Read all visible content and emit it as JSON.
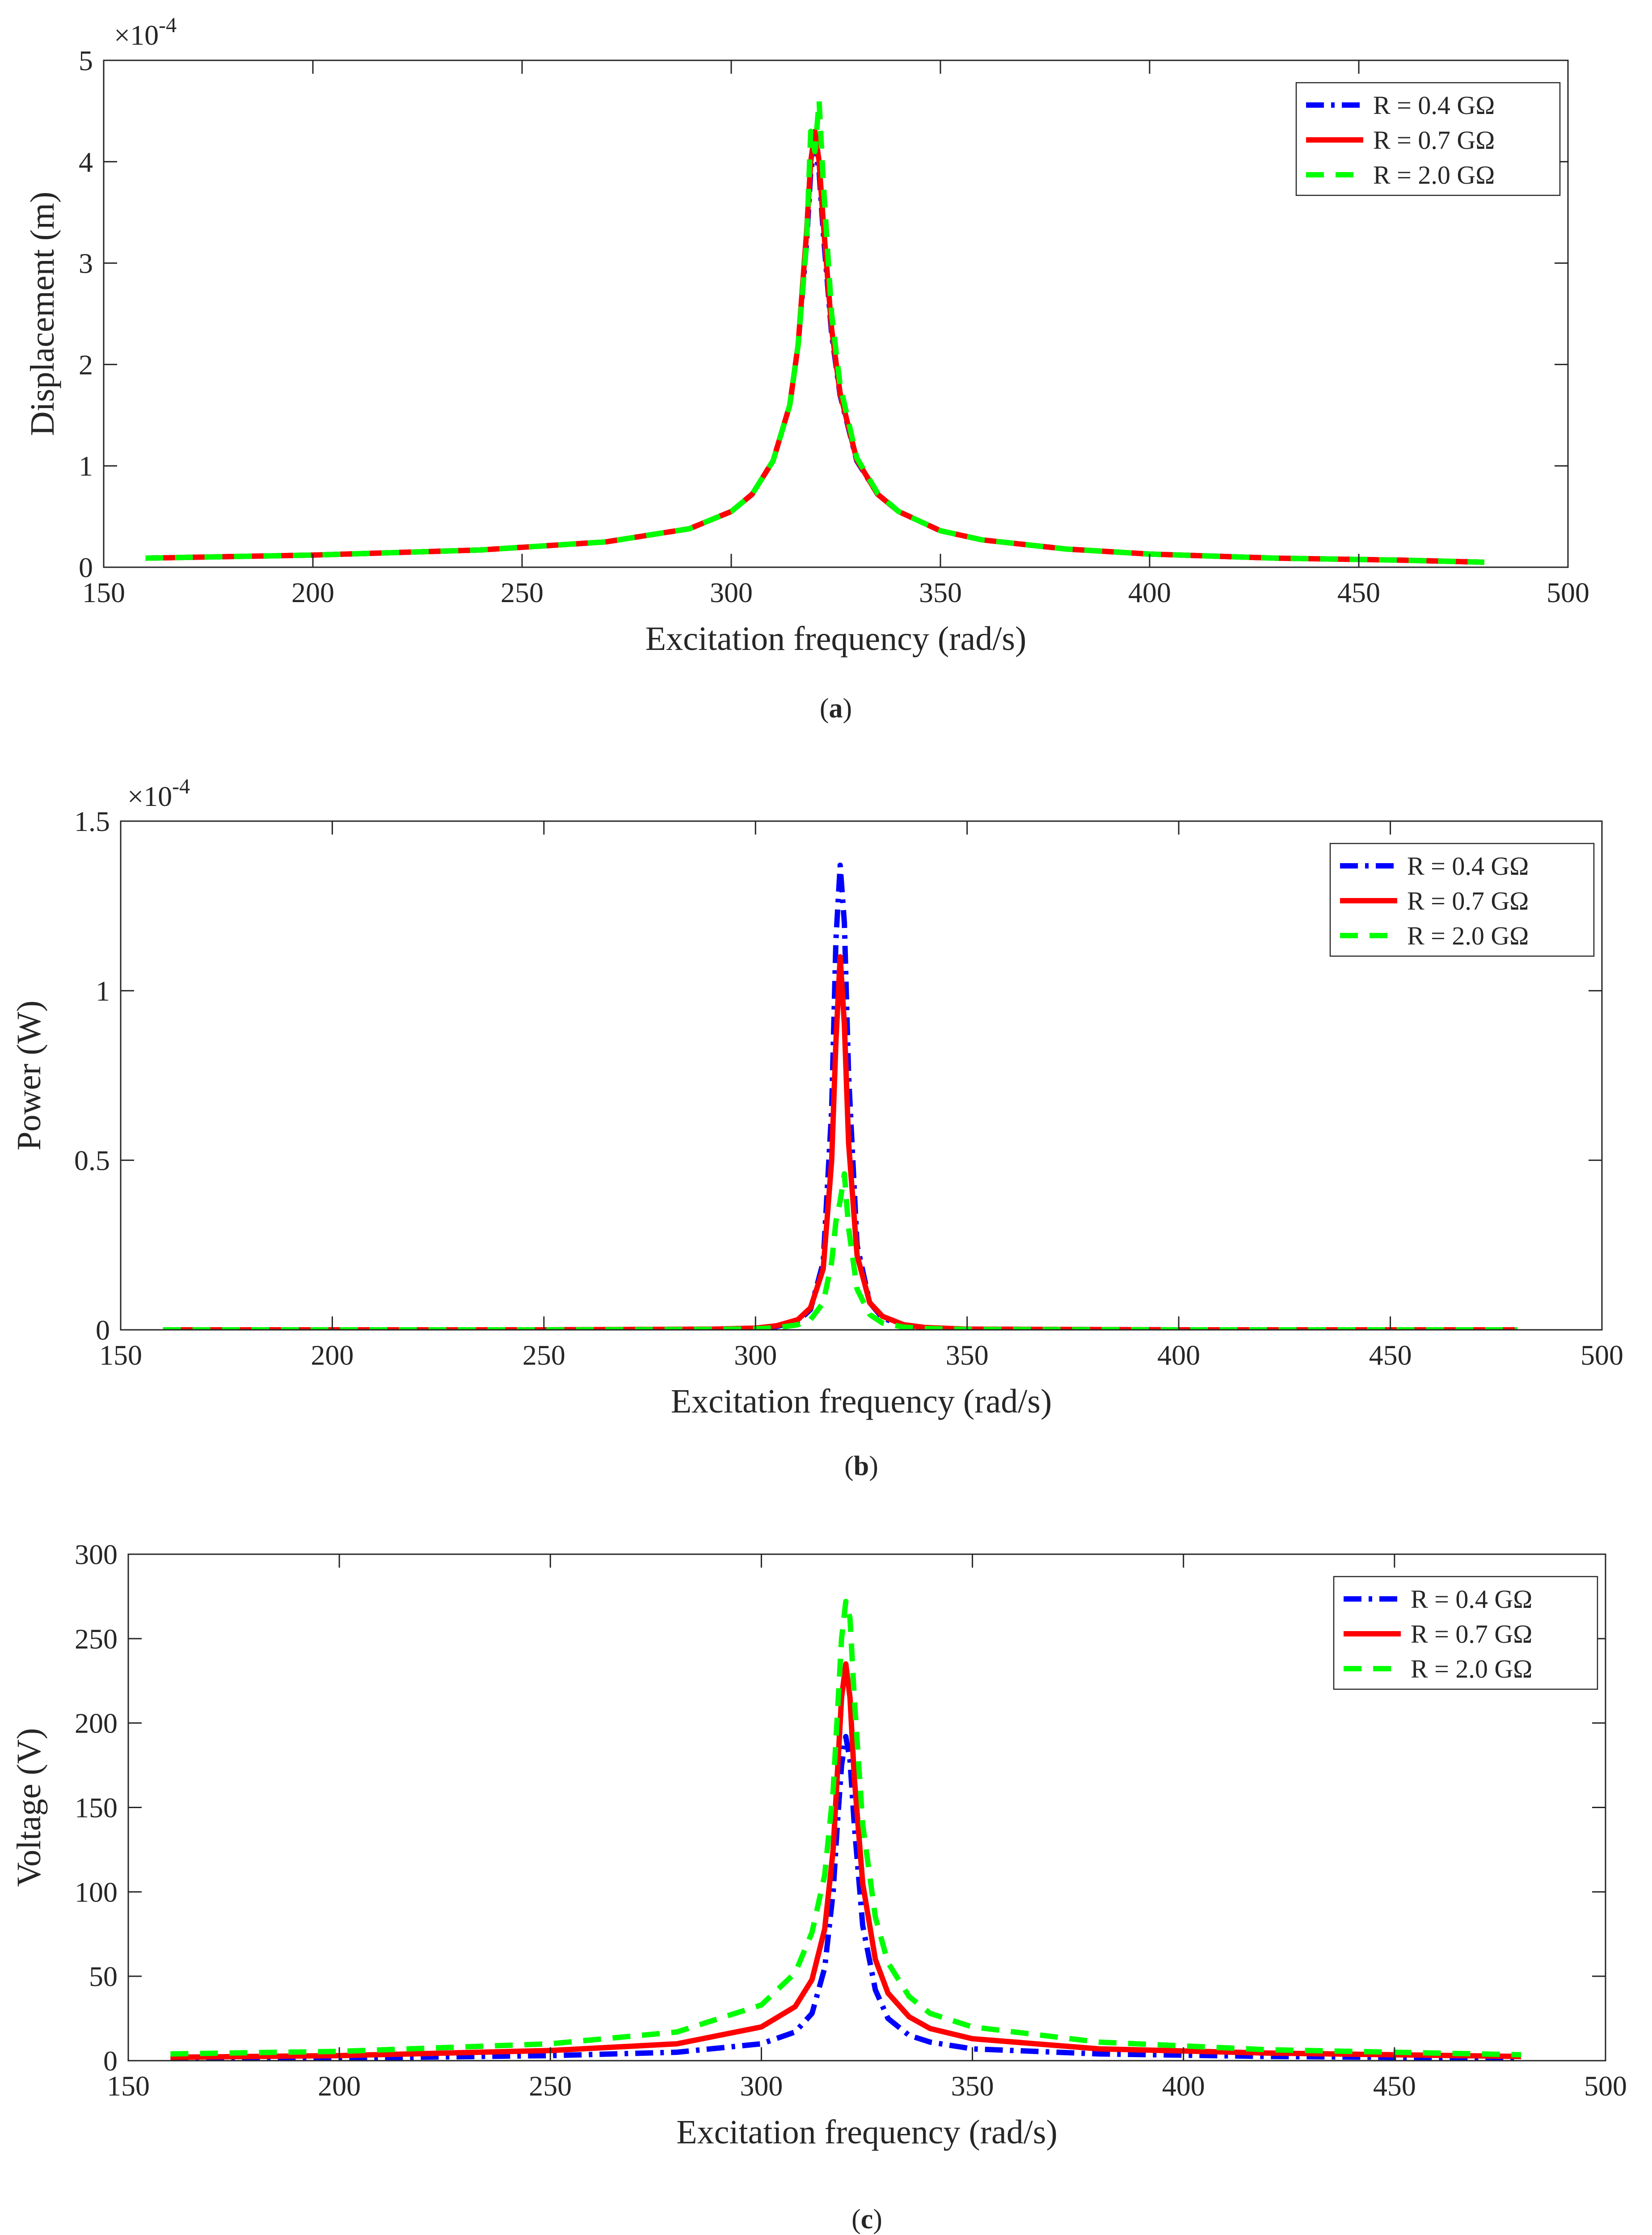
{
  "chart_data": [
    {
      "type": "line",
      "panel": "a",
      "caption_letter": "a",
      "xlabel": "Excitation frequency (rad/s)",
      "ylabel": "Displacement (m)",
      "xlim": [
        150,
        500
      ],
      "ylim": [
        0,
        5
      ],
      "xticks": [
        "150",
        "200",
        "250",
        "300",
        "350",
        "400",
        "450",
        "500"
      ],
      "yticks": [
        "0",
        "1",
        "2",
        "3",
        "4",
        "5"
      ],
      "exponent": "×10",
      "exponent_power": "-4",
      "legend_position": "top-right",
      "series": [
        {
          "name": "R = 0.4 GΩ",
          "color": "#0000ff",
          "style": "dash-dot",
          "x": [
            160,
            200,
            240,
            270,
            290,
            300,
            305,
            310,
            314,
            316,
            318,
            319,
            320,
            321,
            322,
            324,
            326,
            330,
            335,
            340,
            350,
            360,
            380,
            400,
            430,
            460,
            480
          ],
          "y": [
            0.09,
            0.12,
            0.17,
            0.25,
            0.38,
            0.55,
            0.72,
            1.05,
            1.6,
            2.2,
            3.2,
            3.9,
            4.15,
            3.9,
            3.3,
            2.3,
            1.7,
            1.05,
            0.72,
            0.55,
            0.36,
            0.27,
            0.18,
            0.13,
            0.09,
            0.07,
            0.05
          ]
        },
        {
          "name": "R = 0.7 GΩ",
          "color": "#ff0000",
          "style": "solid",
          "x": [
            160,
            200,
            240,
            270,
            290,
            300,
            305,
            310,
            314,
            316,
            318,
            319,
            320,
            321,
            322,
            324,
            326,
            330,
            335,
            340,
            350,
            360,
            380,
            400,
            430,
            460,
            480
          ],
          "y": [
            0.09,
            0.12,
            0.17,
            0.25,
            0.38,
            0.55,
            0.72,
            1.05,
            1.6,
            2.2,
            3.3,
            4.0,
            4.3,
            4.0,
            3.4,
            2.35,
            1.72,
            1.06,
            0.72,
            0.55,
            0.36,
            0.27,
            0.18,
            0.13,
            0.09,
            0.07,
            0.05
          ]
        },
        {
          "name": "R = 2.0 GΩ",
          "color": "#00ff00",
          "style": "dash",
          "x": [
            160,
            200,
            240,
            270,
            290,
            300,
            305,
            310,
            314,
            316,
            318,
            319,
            320,
            321,
            322,
            324,
            326,
            330,
            335,
            340,
            350,
            360,
            380,
            400,
            430,
            460,
            480
          ],
          "y": [
            0.09,
            0.12,
            0.17,
            0.25,
            0.38,
            0.55,
            0.72,
            1.05,
            1.6,
            2.2,
            3.2,
            4.3,
            4.1,
            4.6,
            3.8,
            2.5,
            1.8,
            1.08,
            0.73,
            0.55,
            0.36,
            0.27,
            0.18,
            0.13,
            0.09,
            0.07,
            0.05
          ]
        }
      ]
    },
    {
      "type": "line",
      "panel": "b",
      "caption_letter": "b",
      "xlabel": "Excitation frequency (rad/s)",
      "ylabel": "Power (W)",
      "xlim": [
        150,
        500
      ],
      "ylim": [
        0,
        1.5
      ],
      "xticks": [
        "150",
        "200",
        "250",
        "300",
        "350",
        "400",
        "450",
        "500"
      ],
      "yticks": [
        "0",
        "0.5",
        "1",
        "1.5"
      ],
      "exponent": "×10",
      "exponent_power": "-4",
      "legend_position": "top-right",
      "series": [
        {
          "name": "R = 0.4 GΩ",
          "color": "#0000ff",
          "style": "dash-dot",
          "x": [
            160,
            250,
            290,
            300,
            305,
            310,
            313,
            316,
            318,
            319,
            320,
            321,
            322,
            324,
            327,
            330,
            335,
            340,
            350,
            400,
            480
          ],
          "y": [
            0,
            0,
            0.002,
            0.005,
            0.01,
            0.025,
            0.06,
            0.2,
            0.65,
            1.15,
            1.37,
            1.2,
            0.75,
            0.25,
            0.08,
            0.035,
            0.012,
            0.006,
            0.002,
            0,
            0
          ]
        },
        {
          "name": "R = 0.7 GΩ",
          "color": "#ff0000",
          "style": "solid",
          "x": [
            160,
            250,
            290,
            300,
            305,
            310,
            313,
            316,
            318,
            319,
            320,
            321,
            322,
            324,
            327,
            330,
            335,
            340,
            350,
            400,
            480
          ],
          "y": [
            0,
            0,
            0.002,
            0.005,
            0.012,
            0.03,
            0.065,
            0.18,
            0.5,
            0.85,
            1.1,
            0.9,
            0.55,
            0.22,
            0.08,
            0.04,
            0.015,
            0.007,
            0.002,
            0,
            0
          ]
        },
        {
          "name": "R = 2.0 GΩ",
          "color": "#00ff00",
          "style": "dash",
          "x": [
            160,
            250,
            290,
            300,
            305,
            310,
            313,
            316,
            318,
            319,
            320,
            321,
            322,
            324,
            327,
            330,
            335,
            340,
            350,
            400,
            480
          ],
          "y": [
            0,
            0,
            0.001,
            0.003,
            0.006,
            0.015,
            0.03,
            0.08,
            0.2,
            0.32,
            0.38,
            0.46,
            0.3,
            0.12,
            0.045,
            0.02,
            0.008,
            0.004,
            0.001,
            0,
            0
          ]
        }
      ]
    },
    {
      "type": "line",
      "panel": "c",
      "caption_letter": "c",
      "xlabel": "Excitation frequency (rad/s)",
      "ylabel": "Voltage (V)",
      "xlim": [
        150,
        500
      ],
      "ylim": [
        0,
        300
      ],
      "xticks": [
        "150",
        "200",
        "250",
        "300",
        "350",
        "400",
        "450",
        "500"
      ],
      "yticks": [
        "0",
        "50",
        "100",
        "150",
        "200",
        "250",
        "300"
      ],
      "exponent": "",
      "exponent_power": "",
      "legend_position": "top-right",
      "series": [
        {
          "name": "R = 0.4 GΩ",
          "color": "#0000ff",
          "style": "dash-dot",
          "x": [
            160,
            200,
            250,
            280,
            300,
            308,
            312,
            315,
            317,
            318,
            319,
            320,
            321,
            322,
            324,
            327,
            330,
            335,
            340,
            350,
            380,
            420,
            480
          ],
          "y": [
            1,
            1.5,
            3,
            5,
            10,
            17,
            28,
            55,
            100,
            140,
            175,
            192,
            178,
            140,
            80,
            42,
            25,
            15,
            11,
            7,
            4,
            2.5,
            1.5
          ]
        },
        {
          "name": "R = 0.7 GΩ",
          "color": "#ff0000",
          "style": "solid",
          "x": [
            160,
            200,
            250,
            280,
            300,
            308,
            312,
            315,
            317,
            318,
            319,
            320,
            321,
            322,
            324,
            327,
            330,
            335,
            340,
            350,
            380,
            420,
            480
          ],
          "y": [
            2,
            3,
            6,
            10,
            20,
            32,
            48,
            78,
            125,
            170,
            215,
            235,
            215,
            168,
            105,
            60,
            40,
            26,
            19,
            13,
            7,
            4.5,
            2.5
          ]
        },
        {
          "name": "R = 2.0 GΩ",
          "color": "#00ff00",
          "style": "dash",
          "x": [
            160,
            200,
            250,
            280,
            300,
            308,
            312,
            315,
            317,
            318,
            319,
            320,
            321,
            322,
            324,
            327,
            330,
            335,
            340,
            350,
            380,
            420,
            480
          ],
          "y": [
            4,
            5.5,
            10,
            17,
            33,
            52,
            76,
            110,
            160,
            205,
            250,
            272,
            262,
            215,
            140,
            85,
            58,
            38,
            28,
            20,
            11,
            6.5,
            3.5
          ]
        }
      ]
    }
  ]
}
